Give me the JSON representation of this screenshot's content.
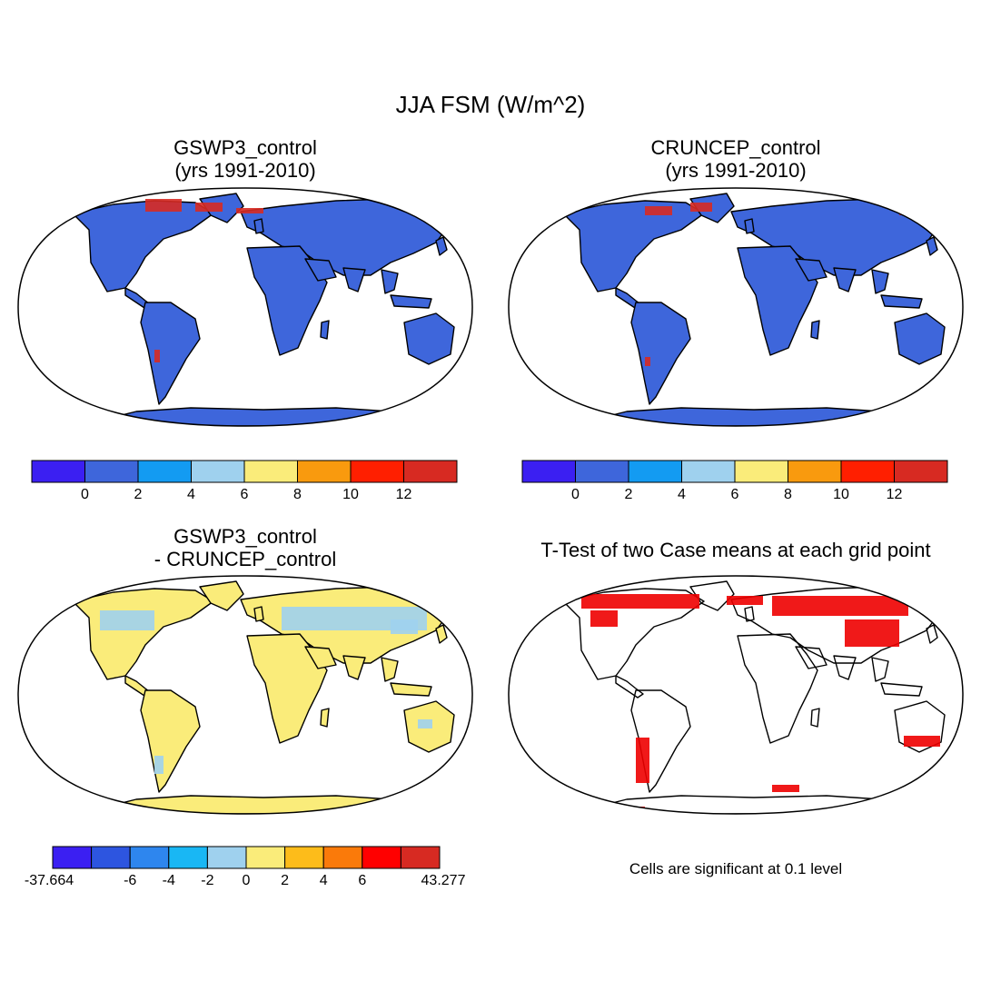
{
  "title": "JJA FSM (W/m^2)",
  "panels": [
    {
      "id": "gswp3",
      "title_lines": [
        "GSWP3_control",
        "(yrs 1991-2010)"
      ],
      "land_fill": "#3E66DB",
      "hot": "#D72A22"
    },
    {
      "id": "cruncep",
      "title_lines": [
        "CRUNCEP_control",
        "(yrs 1991-2010)"
      ],
      "land_fill": "#3E66DB",
      "hot": "#D72A22"
    },
    {
      "id": "diff",
      "title_lines": [
        "GSWP3_control",
        "- CRUNCEP_control"
      ],
      "land_fill": "#FAEC7A",
      "hot": "#9FD1EE"
    },
    {
      "id": "ttest",
      "title_lines": [
        "T-Test of two Case means at each grid point"
      ],
      "land_fill": "none",
      "hot": "#EE0000"
    }
  ],
  "colorbars": {
    "abs": {
      "colors": [
        "#3B1FF2",
        "#3E66DB",
        "#139BF2",
        "#9FD1EE",
        "#FAEC7A",
        "#F99A0E",
        "#FF1F00",
        "#D72A22"
      ],
      "labels": [
        "0",
        "2",
        "4",
        "6",
        "8",
        "10",
        "12"
      ]
    },
    "diff": {
      "colors": [
        "#3B1FF2",
        "#2D55E0",
        "#2E86EE",
        "#19B7F4",
        "#9FD1EE",
        "#FAEC7A",
        "#FDBC1A",
        "#FA7A0A",
        "#FF0000",
        "#D72A22"
      ],
      "labels": [
        "-37.664",
        "-6",
        "-4",
        "-2",
        "0",
        "2",
        "4",
        "6",
        "43.277"
      ]
    }
  },
  "significance_note": "Cells are significant at 0.1 level"
}
